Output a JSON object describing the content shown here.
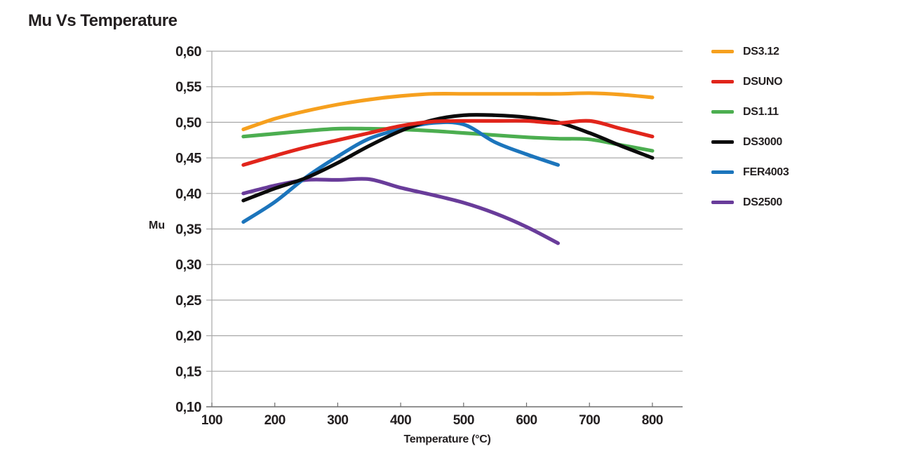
{
  "title": "Mu Vs Temperature",
  "colors": {
    "text": "#231F20",
    "gridline": "#A8A8A8",
    "axis": "#6E6E6E"
  },
  "chart_data": {
    "type": "line",
    "title": "Mu Vs Temperature",
    "xlabel": "Temperature (°C)",
    "ylabel": "Mu",
    "xlim": [
      100,
      848
    ],
    "ylim": [
      0.1,
      0.6
    ],
    "x_ticks": [
      100,
      200,
      300,
      400,
      500,
      600,
      700,
      800
    ],
    "x_tick_labels": [
      "100",
      "200",
      "300",
      "400",
      "500",
      "600",
      "700",
      "800"
    ],
    "y_ticks": [
      0.1,
      0.15,
      0.2,
      0.25,
      0.3,
      0.35,
      0.4,
      0.45,
      0.5,
      0.55,
      0.6
    ],
    "y_tick_labels": [
      "0,10",
      "0,15",
      "0,20",
      "0,25",
      "0,30",
      "0,35",
      "0,40",
      "0,45",
      "0,50",
      "0,55",
      "0,60"
    ],
    "grid": "horizontal",
    "legend_position": "right",
    "series": [
      {
        "name": "DS3.12",
        "color": "#F6A01E",
        "x": [
          150,
          200,
          250,
          300,
          350,
          400,
          450,
          500,
          550,
          600,
          650,
          700,
          750,
          800
        ],
        "values": [
          0.49,
          0.505,
          0.516,
          0.525,
          0.532,
          0.537,
          0.54,
          0.54,
          0.54,
          0.54,
          0.54,
          0.541,
          0.539,
          0.535
        ]
      },
      {
        "name": "DSUNO",
        "color": "#E1251B",
        "x": [
          150,
          200,
          250,
          300,
          350,
          400,
          450,
          500,
          550,
          600,
          650,
          700,
          750,
          800
        ],
        "values": [
          0.44,
          0.453,
          0.465,
          0.475,
          0.485,
          0.495,
          0.501,
          0.502,
          0.502,
          0.502,
          0.499,
          0.502,
          0.491,
          0.48
        ]
      },
      {
        "name": "DS1.11",
        "color": "#4CAE50",
        "x": [
          150,
          200,
          250,
          300,
          350,
          400,
          450,
          500,
          550,
          600,
          650,
          700,
          750,
          800
        ],
        "values": [
          0.48,
          0.484,
          0.488,
          0.491,
          0.491,
          0.49,
          0.488,
          0.485,
          0.482,
          0.479,
          0.477,
          0.476,
          0.468,
          0.46
        ]
      },
      {
        "name": "DS3000",
        "color": "#0B0B0B",
        "x": [
          150,
          200,
          250,
          300,
          350,
          400,
          450,
          500,
          550,
          600,
          650,
          700,
          750,
          800
        ],
        "values": [
          0.39,
          0.407,
          0.422,
          0.443,
          0.467,
          0.488,
          0.503,
          0.51,
          0.51,
          0.507,
          0.5,
          0.485,
          0.467,
          0.45
        ]
      },
      {
        "name": "FER4003",
        "color": "#1C75BC",
        "x": [
          150,
          200,
          250,
          300,
          350,
          400,
          450,
          500,
          550,
          600,
          650
        ],
        "values": [
          0.36,
          0.388,
          0.423,
          0.452,
          0.477,
          0.49,
          0.499,
          0.497,
          0.472,
          0.455,
          0.44
        ]
      },
      {
        "name": "DS2500",
        "color": "#693C9A",
        "x": [
          150,
          200,
          250,
          300,
          350,
          400,
          450,
          500,
          550,
          600,
          650
        ],
        "values": [
          0.4,
          0.411,
          0.419,
          0.419,
          0.42,
          0.408,
          0.398,
          0.387,
          0.372,
          0.353,
          0.33
        ]
      }
    ]
  }
}
